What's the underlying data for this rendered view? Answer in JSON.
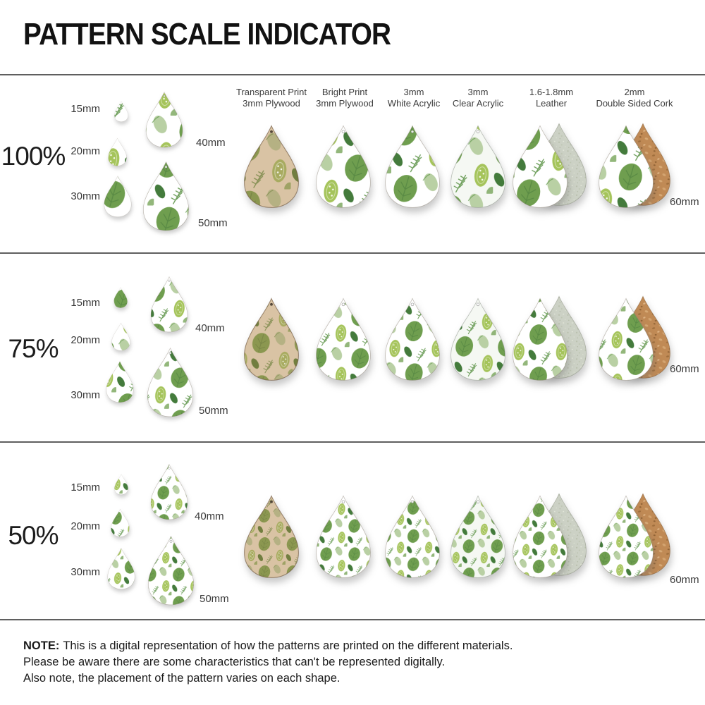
{
  "title": "PATTERN SCALE INDICATOR",
  "rows": [
    {
      "scale_label": "100%",
      "pattern_scale": 1
    },
    {
      "scale_label": "75%",
      "pattern_scale": 0.75
    },
    {
      "scale_label": "50%",
      "pattern_scale": 0.5
    }
  ],
  "sizes": {
    "15": "15mm",
    "20": "20mm",
    "30": "30mm",
    "40": "40mm",
    "50": "50mm",
    "60": "60mm"
  },
  "materials": [
    {
      "line1": "Transparent Print",
      "line2": "3mm Plywood",
      "finish": "wood"
    },
    {
      "line1": "Bright Print",
      "line2": "3mm Plywood",
      "finish": "print"
    },
    {
      "line1": "3mm",
      "line2": "White Acrylic",
      "finish": "print"
    },
    {
      "line1": "3mm",
      "line2": "Clear Acrylic",
      "finish": "clear"
    },
    {
      "line1": "1.6-1.8mm",
      "line2": "Leather",
      "finish": "print",
      "backing": "leather"
    },
    {
      "line1": "2mm",
      "line2": "Double Sided Cork",
      "finish": "print",
      "backing": "cork"
    }
  ],
  "note": {
    "label": "NOTE:",
    "line1": "This is a digital representation of how the patterns are printed on the different materials.",
    "line2": "Please be aware there are some characteristics that can't be represented digitally.",
    "line3": "Also note, the placement of the pattern varies on each shape."
  },
  "colors": {
    "wood_bg": "#d9c3a4",
    "print_bg": "#ffffff",
    "clear_bg": "#f5f8f3",
    "leather_back": "#ccd1c5",
    "cork_back": "#c08a55",
    "leaf_green": "#6f9e4f",
    "leaf_green_dark": "#44753a",
    "leaf_sage": "#b9d0a4",
    "leaf_chartreuse": "#a5c45b",
    "leaf_dark": "#3a7431",
    "leaf_fern": "#5d9448",
    "wood_leaf": "#8b9750",
    "wood_leaf_dark": "#66713a",
    "wood_leaf_pale": "#b5b183",
    "divider": "#5f5f5f",
    "text": "#1b1b1b"
  }
}
